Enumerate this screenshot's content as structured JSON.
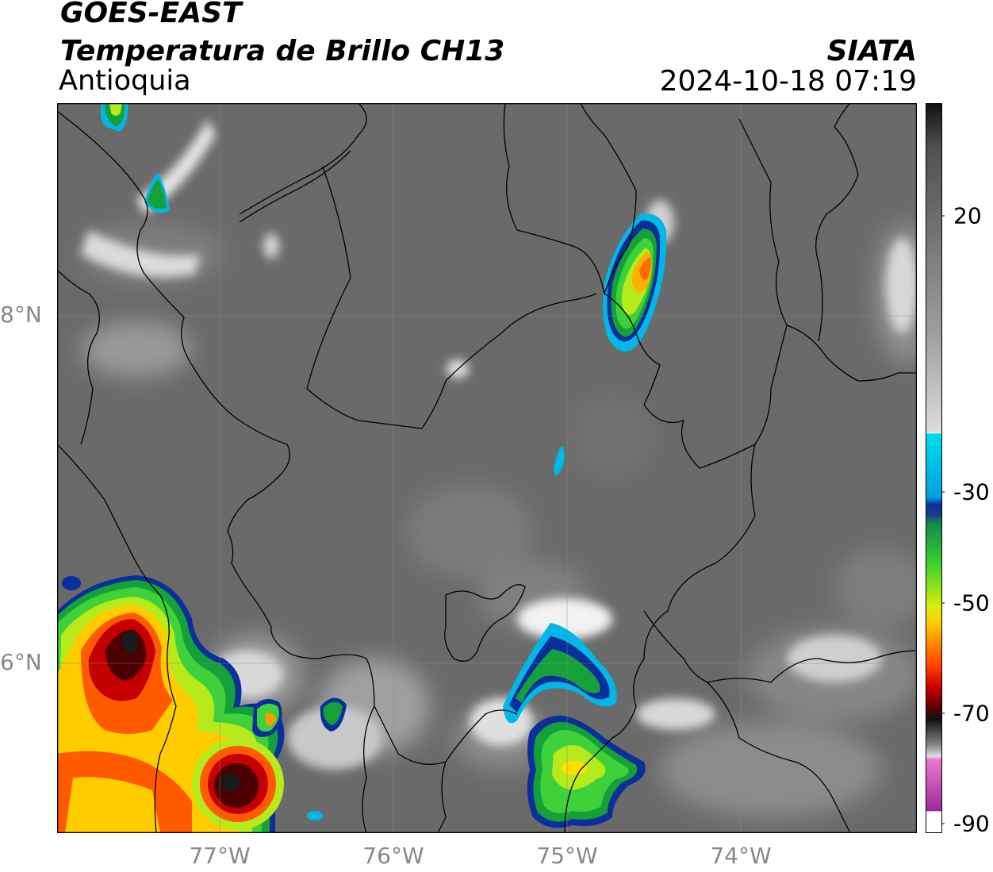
{
  "header": {
    "satellite": "GOES-EAST",
    "product": "Temperatura de Brillo CH13",
    "region": "Antioquia",
    "organization": "SIATA",
    "datetime": "2024-10-18 07:19"
  },
  "map": {
    "lat_ticks": [
      "8°N",
      "6°N"
    ],
    "lon_ticks": [
      "77°W",
      "76°W",
      "75°W",
      "74°W"
    ],
    "background_color": "#6a6a6a"
  },
  "colorbar": {
    "ticks": [
      "20",
      "-30",
      "-50",
      "-70",
      "-90"
    ],
    "min": -90,
    "max": 40
  }
}
